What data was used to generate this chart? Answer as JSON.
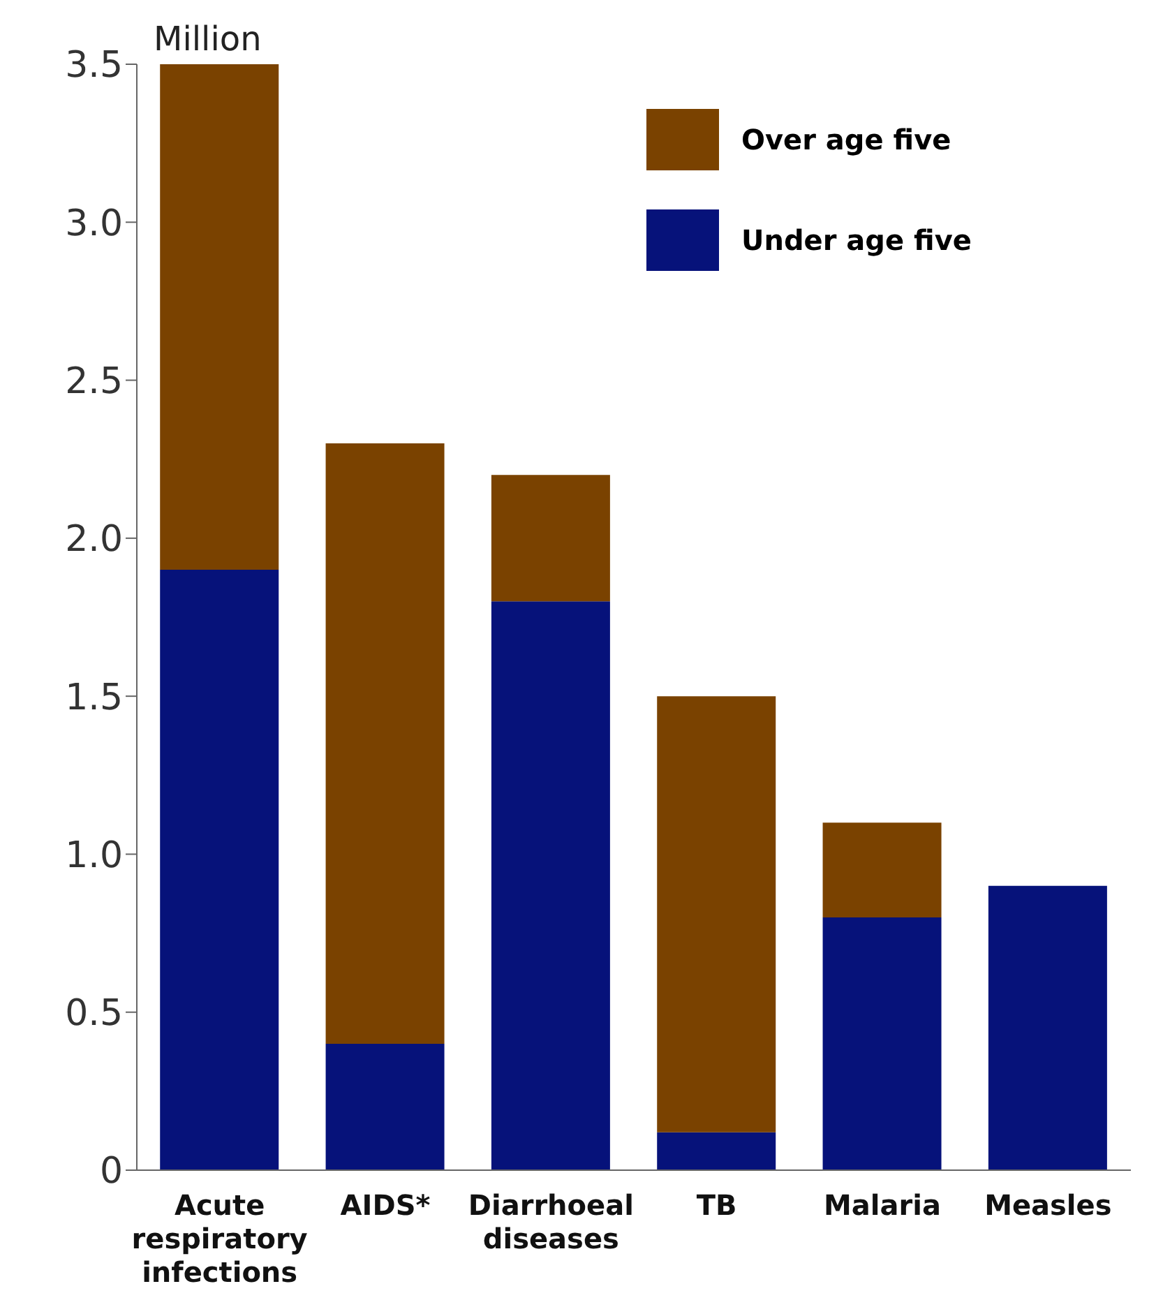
{
  "chart_data": {
    "type": "bar",
    "stacked": true,
    "ylabel": "Million",
    "categories": [
      "Acute respiratory infections",
      "AIDS*",
      "Diarrhoeal diseases",
      "TB",
      "Malaria",
      "Measles"
    ],
    "series": [
      {
        "name": "Under age five",
        "color": "#06127a",
        "values": [
          1.9,
          0.4,
          1.8,
          0.12,
          0.8,
          0.9
        ]
      },
      {
        "name": "Over age five",
        "color": "#7a4200",
        "values": [
          1.6,
          1.9,
          0.4,
          1.38,
          0.3,
          0
        ]
      }
    ],
    "ylim": [
      0,
      3.5
    ],
    "yticks": [
      0,
      0.5,
      {
        "value": 1,
        "label": "1.0"
      },
      1.5,
      {
        "value": 2,
        "label": "2.0"
      },
      2.5,
      {
        "value": 3,
        "label": "3.0"
      },
      3.5
    ],
    "grid": false,
    "legend": "top right"
  }
}
